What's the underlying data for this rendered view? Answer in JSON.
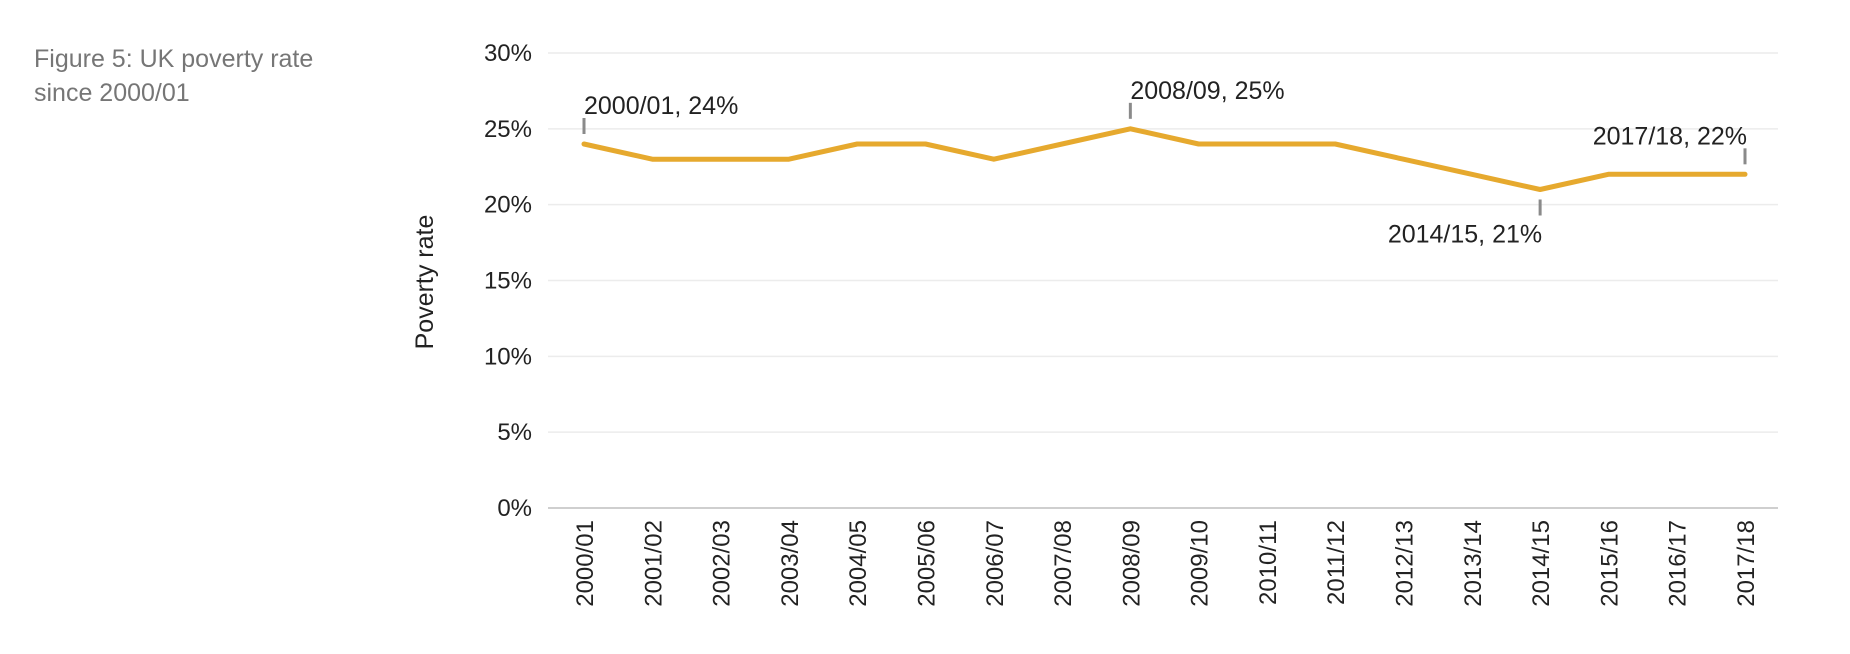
{
  "figure": {
    "title": "Figure 5: UK poverty rate since 2000/01"
  },
  "colors": {
    "line": "#e6a92e",
    "grid": "#ececec",
    "axis": "#cfcfcf",
    "marker": "#8a8a8a",
    "text": "#222222"
  },
  "chart_data": {
    "type": "line",
    "title": "",
    "xlabel": "",
    "ylabel": "Poverty rate",
    "ylim": [
      0,
      30
    ],
    "ytick_values": [
      0,
      5,
      10,
      15,
      20,
      25,
      30
    ],
    "ytick_labels": [
      "0%",
      "5%",
      "10%",
      "15%",
      "20%",
      "25%",
      "30%"
    ],
    "grid": true,
    "categories": [
      "2000/01",
      "2001/02",
      "2002/03",
      "2003/04",
      "2004/05",
      "2005/06",
      "2006/07",
      "2007/08",
      "2008/09",
      "2009/10",
      "2010/11",
      "2011/12",
      "2012/13",
      "2013/14",
      "2014/15",
      "2015/16",
      "2016/17",
      "2017/18"
    ],
    "series": [
      {
        "values": [
          24,
          23,
          23,
          23,
          24,
          24,
          23,
          24,
          25,
          24,
          24,
          24,
          23,
          22,
          21,
          22,
          22,
          22
        ]
      }
    ],
    "annotations": [
      {
        "text": "2000/01, 24%",
        "index": 0,
        "position": "above-right"
      },
      {
        "text": "2008/09, 25%",
        "index": 8,
        "position": "above-right"
      },
      {
        "text": "2014/15, 21%",
        "index": 14,
        "position": "below-left"
      },
      {
        "text": "2017/18, 22%",
        "index": 17,
        "position": "above-left"
      }
    ]
  }
}
